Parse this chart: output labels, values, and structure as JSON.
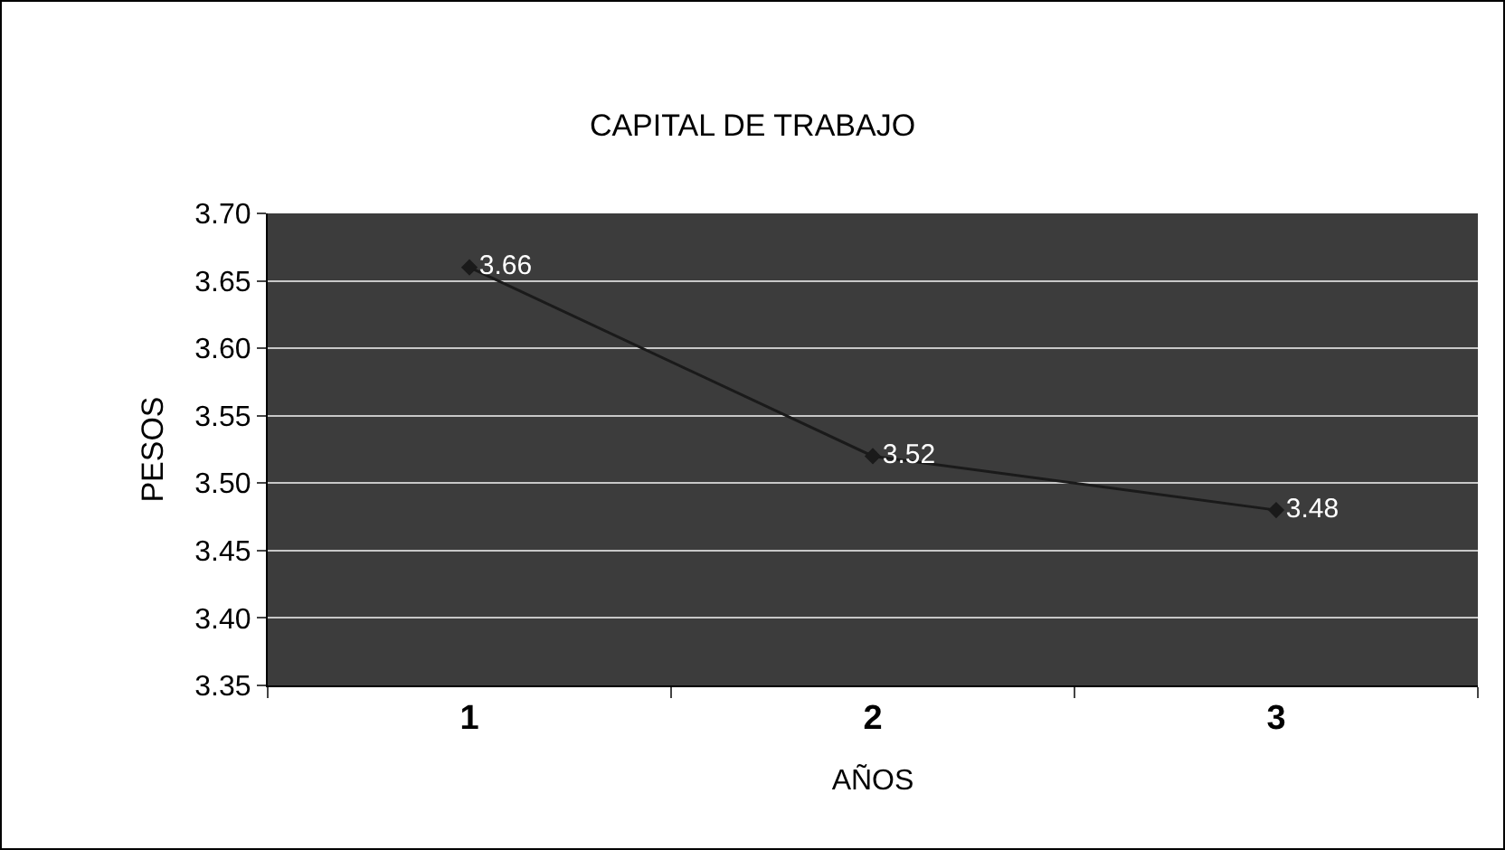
{
  "chart_data": {
    "type": "line",
    "title": "CAPITAL DE TRABAJO",
    "xlabel": "AÑOS",
    "ylabel": "PESOS",
    "categories": [
      "1",
      "2",
      "3"
    ],
    "series": [
      {
        "color": "#1a1a1a",
        "values": [
          3.66,
          3.52,
          3.48
        ]
      }
    ],
    "ylim": [
      3.35,
      3.7
    ],
    "yticks": [
      {
        "value": 3.35,
        "label": "3.35"
      },
      {
        "value": 3.4,
        "label": "3.40"
      },
      {
        "value": 3.45,
        "label": "3.45"
      },
      {
        "value": 3.5,
        "label": "3.50"
      },
      {
        "value": 3.55,
        "label": "3.55"
      },
      {
        "value": 3.6,
        "label": "3.60"
      },
      {
        "value": 3.65,
        "label": "3.65"
      },
      {
        "value": 3.7,
        "label": "3.70"
      }
    ],
    "grid": "y",
    "legend": false,
    "marker": "diamond",
    "line_style": "solid",
    "data_labels": true
  }
}
